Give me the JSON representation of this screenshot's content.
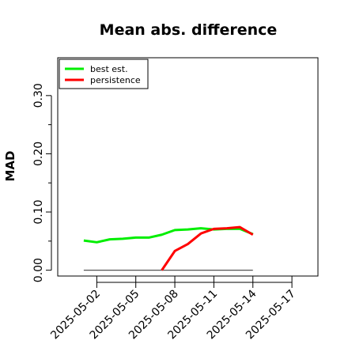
{
  "chart_data": {
    "type": "line",
    "title": "Mean abs. difference",
    "xlabel": "",
    "ylabel": "MAD",
    "ylim": [
      -0.01,
      0.365
    ],
    "xlim": [
      "2025-04-29",
      "2025-05-19"
    ],
    "yticks": [
      "0.00",
      "0.10",
      "0.20",
      "0.30"
    ],
    "ytick_values": [
      0.0,
      0.1,
      0.2,
      0.3
    ],
    "xticks": [
      "2025-05-02",
      "2025-05-05",
      "2025-05-08",
      "2025-05-11",
      "2025-05-14",
      "2025-05-17"
    ],
    "legend_position": "top-left",
    "grid": false,
    "series": [
      {
        "name": "best est.",
        "color": "#00ee00",
        "x": [
          "2025-05-01",
          "2025-05-02",
          "2025-05-03",
          "2025-05-04",
          "2025-05-05",
          "2025-05-06",
          "2025-05-07",
          "2025-05-08",
          "2025-05-09",
          "2025-05-10",
          "2025-05-11",
          "2025-05-12",
          "2025-05-13",
          "2025-05-14"
        ],
        "values": [
          0.051,
          0.048,
          0.053,
          0.054,
          0.056,
          0.056,
          0.061,
          0.069,
          0.07,
          0.072,
          0.07,
          0.071,
          0.071,
          0.062
        ]
      },
      {
        "name": "persistence",
        "color": "#ff0000",
        "x": [
          "2025-05-07",
          "2025-05-08",
          "2025-05-09",
          "2025-05-10",
          "2025-05-11",
          "2025-05-12",
          "2025-05-13",
          "2025-05-14"
        ],
        "values": [
          0.0,
          0.033,
          0.045,
          0.063,
          0.071,
          0.072,
          0.074,
          0.061
        ]
      }
    ],
    "reference_line": {
      "color": "#555555",
      "x": [
        "2025-05-01",
        "2025-05-14"
      ],
      "values": [
        0.0,
        0.0
      ]
    }
  }
}
